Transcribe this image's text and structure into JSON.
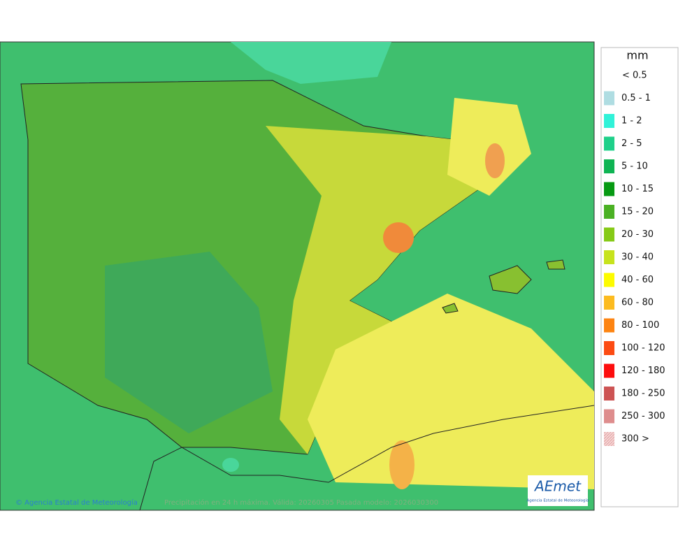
{
  "legend": {
    "title": "mm",
    "items": [
      {
        "label": "< 0.5",
        "color": null
      },
      {
        "label": "0.5 - 1",
        "color": "#afdde2"
      },
      {
        "label": "1 - 2",
        "color": "#31f2d8"
      },
      {
        "label": "2 - 5",
        "color": "#1fd08a"
      },
      {
        "label": "5 - 10",
        "color": "#0fb453"
      },
      {
        "label": "10 - 15",
        "color": "#079a13"
      },
      {
        "label": "15 - 20",
        "color": "#4bb124"
      },
      {
        "label": "20 - 30",
        "color": "#86ca17"
      },
      {
        "label": "30 - 40",
        "color": "#c7e31d"
      },
      {
        "label": "40 - 60",
        "color": "#fdfb00"
      },
      {
        "label": "60 - 80",
        "color": "#fcbb20"
      },
      {
        "label": "80 - 100",
        "color": "#fd8412"
      },
      {
        "label": "100 - 120",
        "color": "#fc4b13"
      },
      {
        "label": "120 - 180",
        "color": "#fd0d0d"
      },
      {
        "label": "180 - 250",
        "color": "#cd5454"
      },
      {
        "label": "250 - 300",
        "color": "#de8d8d"
      },
      {
        "label": "300 >",
        "color": "#f6d6d6"
      }
    ]
  },
  "map": {
    "copyright": "© Agencia Estatal de Meteorología",
    "caption": "Precipitación en 24 h máxima. Válida: 20260305 Pasada modelo: 2026030300"
  },
  "logo": {
    "name": "AEmet",
    "subtitle": "Agencia Estatal de Meteorología"
  }
}
